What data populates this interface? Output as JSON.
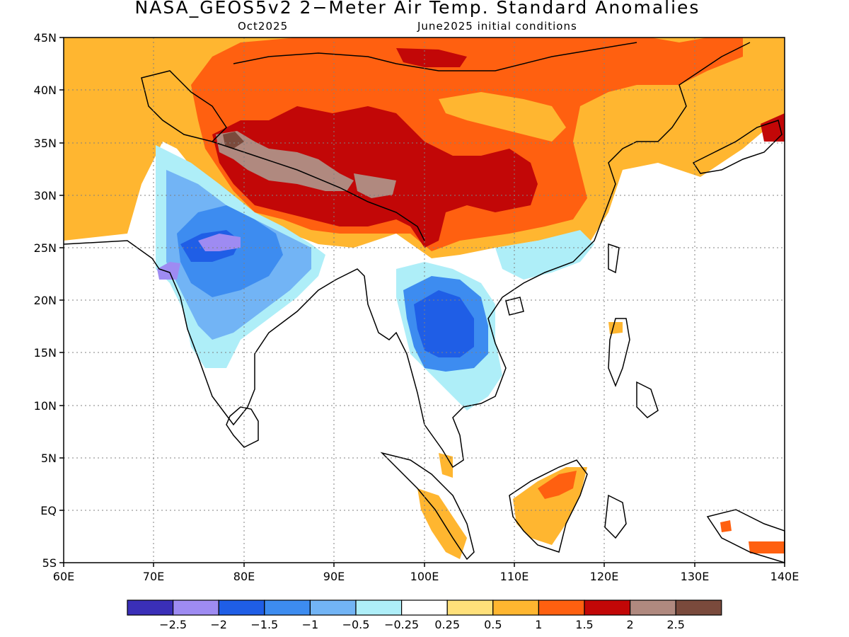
{
  "title": "NASA_GEOS5v2 2−Meter Air Temp. Standard Anomalies",
  "subtitle_left": "Oct2025",
  "subtitle_right": "June2025 initial conditions",
  "map": {
    "lon_range": [
      60,
      140
    ],
    "lat_range": [
      -5,
      45
    ],
    "lon_ticks": [
      "60E",
      "70E",
      "80E",
      "90E",
      "100E",
      "110E",
      "120E",
      "130E",
      "140E"
    ],
    "lat_ticks": [
      "45N",
      "40N",
      "35N",
      "30N",
      "25N",
      "20N",
      "15N",
      "10N",
      "5N",
      "EQ",
      "5S"
    ],
    "grid": "dotted",
    "land_color": "#ffffff",
    "coast_color": "#000000"
  },
  "colorbar": {
    "colors": [
      "#3a2fb8",
      "#9e8bf2",
      "#1f5ee6",
      "#3d8cf0",
      "#72b4f5",
      "#aeeef8",
      "#ffffff",
      "#ffe07a",
      "#ffb630",
      "#ff6010",
      "#c20707",
      "#b0897f",
      "#7a4a3c"
    ],
    "labels": [
      "−2.5",
      "−2",
      "−1.5",
      "−1",
      "−0.5",
      "−0.25",
      "0.25",
      "0.5",
      "1",
      "1.5",
      "2",
      "2.5"
    ]
  }
}
